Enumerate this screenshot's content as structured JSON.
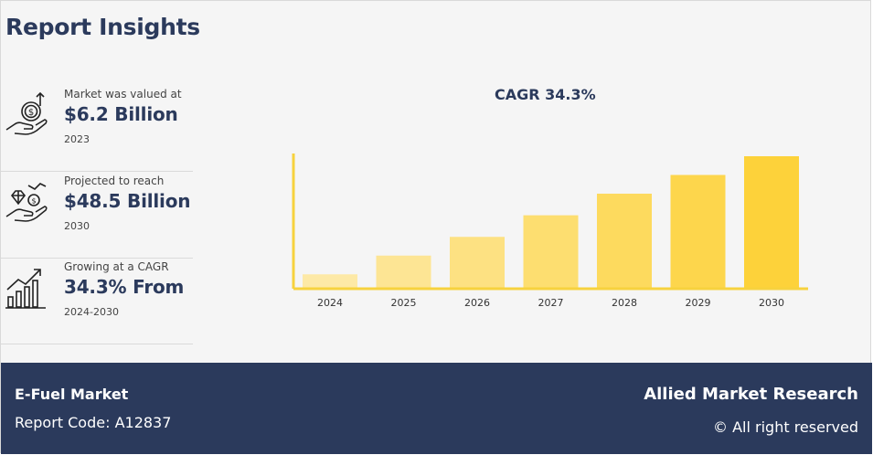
{
  "title": "Report Insights",
  "stats": [
    {
      "lead": "Market was valued at",
      "value": "$6.2 Billion",
      "sub": "2023"
    },
    {
      "lead": "Projected to reach",
      "value": "$48.5 Billion",
      "sub": "2030"
    },
    {
      "lead": "Growing at a CAGR",
      "value": "34.3% From",
      "sub": "2024-2030"
    }
  ],
  "icons": [
    "money-hand-icon",
    "diamond-hand-icon",
    "growth-chart-icon"
  ],
  "footer": {
    "market": "E-Fuel Market",
    "code": "Report Code: A12837",
    "brand": "Allied Market Research",
    "rights": "© All right reserved"
  },
  "colors": {
    "navy": "#2b3a5c",
    "bar_light": "#fde9a6",
    "bar_dark": "#fdd23a",
    "axis": "#f7d23e"
  },
  "chart_data": {
    "type": "bar",
    "title": "CAGR 34.3%",
    "categories": [
      "2024",
      "2025",
      "2026",
      "2027",
      "2028",
      "2029",
      "2030"
    ],
    "values": [
      1.0,
      2.3,
      3.6,
      5.1,
      6.6,
      7.9,
      9.2
    ],
    "xlabel": "",
    "ylabel": "",
    "ylim": [
      0,
      9.2
    ],
    "y_axis_labels": false,
    "grid": false
  }
}
